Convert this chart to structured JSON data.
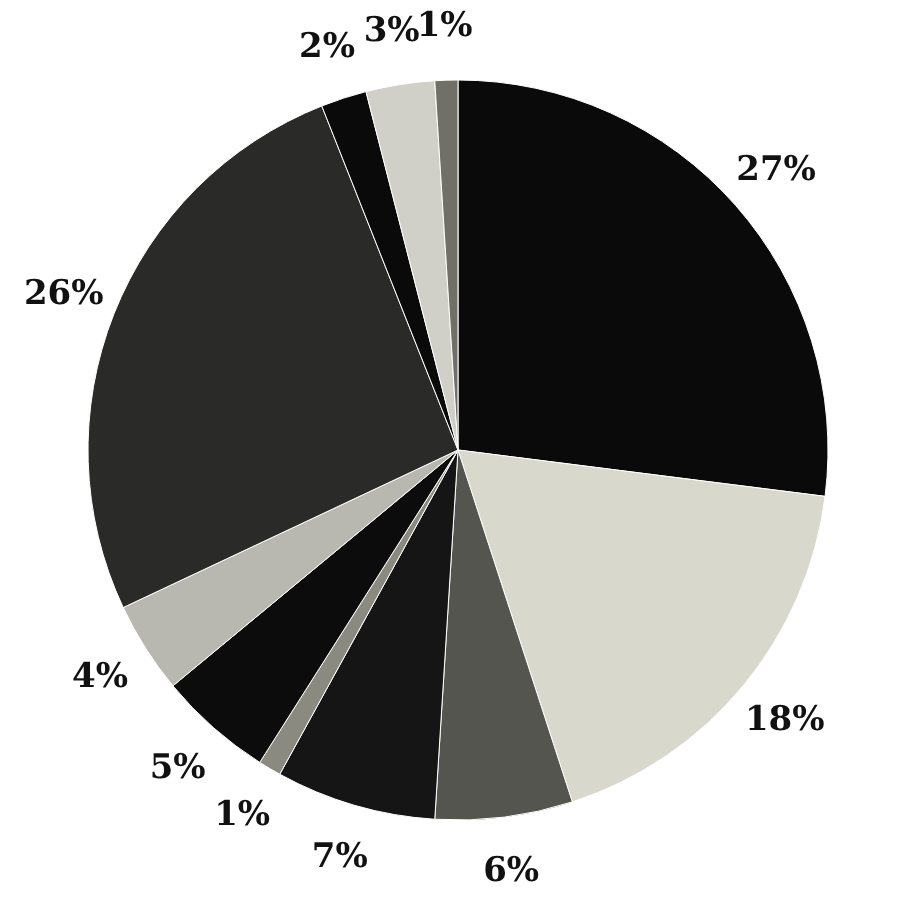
{
  "chart_data": {
    "type": "pie",
    "categories": [
      null,
      null,
      null,
      null,
      null,
      null,
      null,
      null,
      null,
      null,
      null
    ],
    "values": [
      27,
      18,
      6,
      7,
      1,
      5,
      4,
      26,
      2,
      3,
      1
    ],
    "value_labels": [
      "27%",
      "18%",
      "6%",
      "7%",
      "1%",
      "5%",
      "4%",
      "26%",
      "2%",
      "3%",
      "1%"
    ],
    "colors": [
      "#0a0a0a",
      "#d8d8cc",
      "#55554f",
      "#151515",
      "#8a8a80",
      "#0c0c0c",
      "#b8b8b0",
      "#2a2a28",
      "#0a0a0a",
      "#d0d0c8",
      "#707068"
    ],
    "legend": false
  }
}
